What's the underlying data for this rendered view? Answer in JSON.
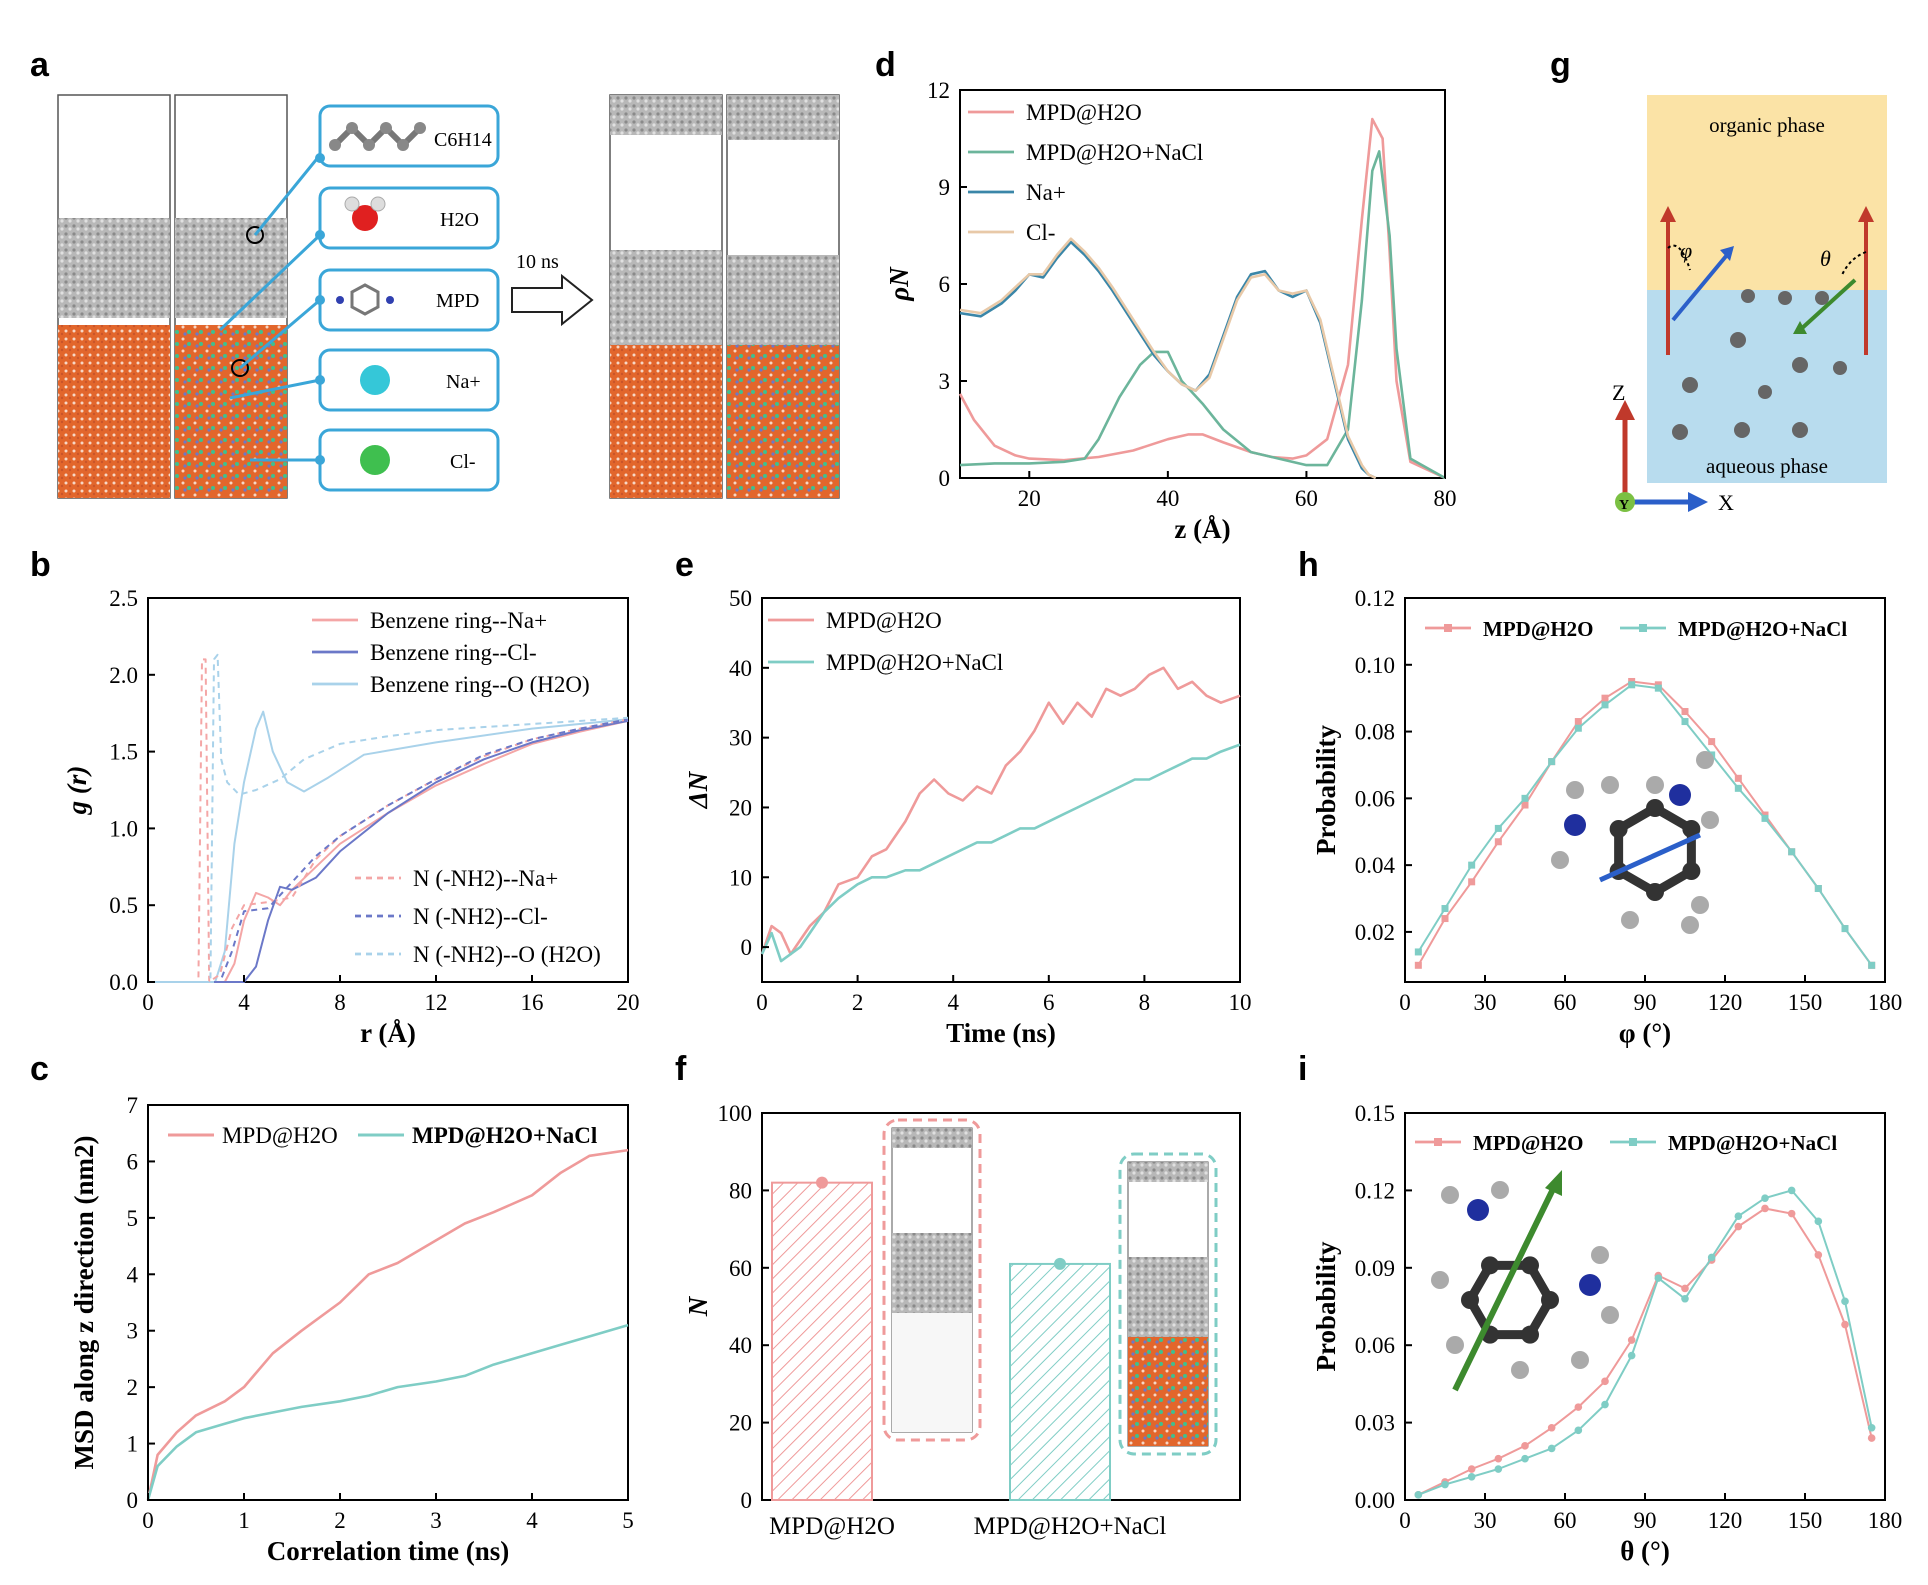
{
  "colors": {
    "pink": "#ef9a9a",
    "pinkRdf": "#f4a6a6",
    "teal": "#7fcdc5",
    "green": "#6cb59b",
    "darkTeal": "#3a86a8",
    "beige": "#e8c9a8",
    "blueNavy": "#6b78c8",
    "lightBlue": "#a9d2ea",
    "water": "#e2662c",
    "mol": "#9a9a9a",
    "calloutBorder": "#3aa6d8",
    "organic": "#fbe3a6",
    "aqueous": "#b8dcee"
  },
  "panels": {
    "a": {
      "label": "a",
      "arrow_text": "10 ns",
      "callouts": [
        "C6H14",
        "H2O",
        "MPD",
        "Na+",
        "Cl-"
      ]
    },
    "g": {
      "label": "g",
      "organic": "organic phase",
      "aqueous": "aqueous phase",
      "axis_z": "Z",
      "axis_x": "X",
      "axis_y": "Y",
      "phi": "φ",
      "theta": "θ"
    }
  },
  "chart_data": [
    {
      "id": "b",
      "type": "line",
      "xlabel": "r (Å)",
      "ylabel": "g (r)",
      "xlim": [
        0,
        20
      ],
      "ylim": [
        0,
        2.5
      ],
      "xticks": [
        "0",
        "4",
        "8",
        "12",
        "16",
        "20"
      ],
      "yticks": [
        "0.0",
        "0.5",
        "1.0",
        "1.5",
        "2.0",
        "2.5"
      ],
      "series": [
        {
          "name": "Benzene ring--Na+",
          "dash": false,
          "colorKey": "pinkRdf",
          "x": [
            0,
            3.2,
            3.6,
            4,
            4.5,
            5,
            5.5,
            6,
            7,
            8,
            10,
            12,
            14,
            16,
            18,
            20
          ],
          "y": [
            0,
            0,
            0.12,
            0.4,
            0.58,
            0.55,
            0.5,
            0.6,
            0.75,
            0.9,
            1.1,
            1.28,
            1.42,
            1.55,
            1.63,
            1.7
          ]
        },
        {
          "name": "Benzene ring--Cl-",
          "dash": false,
          "colorKey": "blueNavy",
          "x": [
            0,
            4,
            4.5,
            5,
            5.5,
            6,
            7,
            8,
            10,
            12,
            14,
            16,
            18,
            20
          ],
          "y": [
            0,
            0,
            0.1,
            0.4,
            0.62,
            0.6,
            0.68,
            0.85,
            1.1,
            1.3,
            1.45,
            1.56,
            1.64,
            1.7
          ]
        },
        {
          "name": "Benzene ring--O (H2O)",
          "dash": false,
          "colorKey": "lightBlue",
          "x": [
            0,
            2.8,
            3.2,
            3.6,
            4,
            4.5,
            4.8,
            5.2,
            5.8,
            6.5,
            7.5,
            9,
            12,
            16,
            20
          ],
          "y": [
            0,
            0,
            0.2,
            0.9,
            1.3,
            1.65,
            1.76,
            1.5,
            1.3,
            1.24,
            1.33,
            1.48,
            1.56,
            1.65,
            1.71
          ]
        },
        {
          "name": "N (-NH2)--Na+",
          "dash": true,
          "colorKey": "pinkRdf",
          "x": [
            0,
            2.1,
            2.25,
            2.4,
            2.55,
            3,
            3.5,
            4,
            5,
            6,
            7,
            8,
            10,
            12,
            14,
            16,
            18,
            20
          ],
          "y": [
            0,
            0,
            2.1,
            2.1,
            0,
            0.05,
            0.35,
            0.5,
            0.52,
            0.55,
            0.8,
            0.95,
            1.15,
            1.32,
            1.47,
            1.58,
            1.65,
            1.71
          ]
        },
        {
          "name": "N (-NH2)--Cl-",
          "dash": true,
          "colorKey": "blueNavy",
          "x": [
            0,
            3,
            3.5,
            4,
            5,
            6,
            7,
            8,
            10,
            12,
            14,
            16,
            18,
            20
          ],
          "y": [
            0,
            0,
            0.2,
            0.46,
            0.48,
            0.65,
            0.82,
            0.95,
            1.15,
            1.32,
            1.48,
            1.58,
            1.65,
            1.71
          ]
        },
        {
          "name": "N (-NH2)--O (H2O)",
          "dash": true,
          "colorKey": "lightBlue",
          "x": [
            0,
            2.6,
            2.75,
            2.9,
            3.05,
            3.3,
            3.8,
            4.5,
            5.5,
            6.5,
            8,
            10,
            12,
            16,
            20
          ],
          "y": [
            0,
            0,
            2.1,
            2.13,
            1.45,
            1.3,
            1.22,
            1.25,
            1.32,
            1.45,
            1.55,
            1.6,
            1.64,
            1.68,
            1.72
          ]
        }
      ]
    },
    {
      "id": "c",
      "type": "line",
      "xlabel": "Correlation time (ns)",
      "ylabel": "MSD along z direction (nm2)",
      "xlim": [
        0,
        5
      ],
      "ylim": [
        0,
        7
      ],
      "xticks": [
        "0",
        "1",
        "2",
        "3",
        "4",
        "5"
      ],
      "yticks": [
        "0",
        "1",
        "2",
        "3",
        "4",
        "5",
        "6",
        "7"
      ],
      "series": [
        {
          "name": "MPD@H2O",
          "colorKey": "pink",
          "x": [
            0,
            0.1,
            0.3,
            0.5,
            0.8,
            1,
            1.3,
            1.6,
            2,
            2.3,
            2.6,
            3,
            3.3,
            3.6,
            4,
            4.3,
            4.6,
            5
          ],
          "y": [
            0,
            0.8,
            1.2,
            1.5,
            1.75,
            2.0,
            2.6,
            3.0,
            3.5,
            4.0,
            4.2,
            4.6,
            4.9,
            5.1,
            5.4,
            5.8,
            6.1,
            6.2
          ]
        },
        {
          "name": "MPD@H2O+NaCl",
          "colorKey": "teal",
          "x": [
            0,
            0.1,
            0.3,
            0.5,
            0.8,
            1,
            1.3,
            1.6,
            2,
            2.3,
            2.6,
            3,
            3.3,
            3.6,
            4,
            4.3,
            4.6,
            5
          ],
          "y": [
            0,
            0.6,
            0.95,
            1.2,
            1.35,
            1.45,
            1.55,
            1.65,
            1.75,
            1.85,
            2.0,
            2.1,
            2.2,
            2.4,
            2.6,
            2.75,
            2.9,
            3.1
          ]
        }
      ]
    },
    {
      "id": "d",
      "type": "line",
      "xlabel": "z (Å)",
      "ylabel": "ρN",
      "xlim": [
        10,
        80
      ],
      "ylim": [
        0,
        12
      ],
      "xticks": [
        "20",
        "40",
        "60",
        "80"
      ],
      "yticks": [
        "0",
        "3",
        "6",
        "9",
        "12"
      ],
      "series": [
        {
          "name": "MPD@H2O",
          "colorKey": "pink",
          "x": [
            10,
            12,
            15,
            18,
            20,
            25,
            30,
            35,
            40,
            43,
            45,
            48,
            52,
            55,
            58,
            60,
            63,
            66,
            68,
            69.5,
            71,
            72,
            73,
            75,
            80
          ],
          "y": [
            2.6,
            1.8,
            1.0,
            0.7,
            0.6,
            0.55,
            0.65,
            0.85,
            1.2,
            1.35,
            1.35,
            1.1,
            0.8,
            0.65,
            0.6,
            0.7,
            1.2,
            3.5,
            8.0,
            11.1,
            10.5,
            7.0,
            3.0,
            0.5,
            0
          ]
        },
        {
          "name": "MPD@H2O+NaCl",
          "colorKey": "green",
          "x": [
            10,
            15,
            20,
            25,
            28,
            30,
            33,
            36,
            38,
            40,
            42,
            45,
            48,
            52,
            56,
            60,
            63,
            66,
            68,
            69.5,
            70.5,
            72,
            73,
            75,
            80
          ],
          "y": [
            0.4,
            0.45,
            0.45,
            0.5,
            0.6,
            1.2,
            2.5,
            3.5,
            3.9,
            3.9,
            3.0,
            2.3,
            1.5,
            0.8,
            0.6,
            0.4,
            0.4,
            1.5,
            5.5,
            9.5,
            10.1,
            7.5,
            4.0,
            0.6,
            0
          ]
        },
        {
          "name": "Na+",
          "colorKey": "darkTeal",
          "x": [
            10,
            13,
            16,
            18,
            20,
            22,
            24,
            26,
            28,
            30,
            32,
            35,
            38,
            40,
            42,
            44,
            46,
            48,
            50,
            52,
            54,
            56,
            58,
            60,
            62,
            64,
            66,
            68,
            69,
            70
          ],
          "y": [
            5.1,
            5.0,
            5.4,
            5.8,
            6.3,
            6.2,
            6.8,
            7.3,
            6.9,
            6.4,
            5.8,
            4.8,
            3.8,
            3.3,
            2.9,
            2.7,
            3.2,
            4.4,
            5.6,
            6.3,
            6.4,
            5.8,
            5.6,
            5.8,
            4.8,
            3.0,
            1.2,
            0.3,
            0.1,
            0
          ]
        },
        {
          "name": "Cl-",
          "colorKey": "beige",
          "x": [
            10,
            13,
            16,
            18,
            20,
            22,
            24,
            26,
            28,
            30,
            32,
            35,
            38,
            40,
            42,
            44,
            46,
            48,
            50,
            52,
            54,
            56,
            58,
            60,
            62,
            64,
            66,
            68,
            69,
            70
          ],
          "y": [
            5.2,
            5.1,
            5.5,
            5.9,
            6.3,
            6.3,
            6.9,
            7.4,
            7.0,
            6.5,
            5.9,
            4.9,
            3.9,
            3.3,
            2.9,
            2.7,
            3.1,
            4.3,
            5.5,
            6.2,
            6.3,
            5.8,
            5.7,
            5.8,
            4.9,
            3.1,
            1.3,
            0.4,
            0.1,
            0
          ]
        }
      ]
    },
    {
      "id": "e",
      "type": "line",
      "xlabel": "Time (ns)",
      "ylabel": "ΔN",
      "xlim": [
        0,
        10
      ],
      "ylim": [
        -5,
        50
      ],
      "xticks": [
        "0",
        "2",
        "4",
        "6",
        "8",
        "10"
      ],
      "yticks": [
        "0",
        "10",
        "20",
        "30",
        "40",
        "50"
      ],
      "series": [
        {
          "name": "MPD@H2O",
          "colorKey": "pink",
          "x": [
            0,
            0.2,
            0.4,
            0.6,
            0.8,
            1,
            1.3,
            1.6,
            2,
            2.3,
            2.6,
            3,
            3.3,
            3.6,
            3.9,
            4.2,
            4.5,
            4.8,
            5.1,
            5.4,
            5.7,
            6,
            6.3,
            6.6,
            6.9,
            7.2,
            7.5,
            7.8,
            8.1,
            8.4,
            8.7,
            9,
            9.3,
            9.6,
            10
          ],
          "y": [
            -1,
            3,
            2,
            -1,
            1,
            3,
            5,
            9,
            10,
            13,
            14,
            18,
            22,
            24,
            22,
            21,
            23,
            22,
            26,
            28,
            31,
            35,
            32,
            35,
            33,
            37,
            36,
            37,
            39,
            40,
            37,
            38,
            36,
            35,
            36
          ]
        },
        {
          "name": "MPD@H2O+NaCl",
          "colorKey": "teal",
          "x": [
            0,
            0.2,
            0.4,
            0.6,
            0.8,
            1,
            1.3,
            1.6,
            2,
            2.3,
            2.6,
            3,
            3.3,
            3.6,
            3.9,
            4.2,
            4.5,
            4.8,
            5.1,
            5.4,
            5.7,
            6,
            6.3,
            6.6,
            6.9,
            7.2,
            7.5,
            7.8,
            8.1,
            8.4,
            8.7,
            9,
            9.3,
            9.6,
            10
          ],
          "y": [
            -1,
            2,
            -2,
            -1,
            0,
            2,
            5,
            7,
            9,
            10,
            10,
            11,
            11,
            12,
            13,
            14,
            15,
            15,
            16,
            17,
            17,
            18,
            19,
            20,
            21,
            22,
            23,
            24,
            24,
            25,
            26,
            27,
            27,
            28,
            29
          ]
        }
      ]
    },
    {
      "id": "f",
      "type": "bar",
      "ylabel": "N",
      "ylim": [
        0,
        100
      ],
      "yticks": [
        "0",
        "20",
        "40",
        "60",
        "80",
        "100"
      ],
      "categories": [
        "MPD@H2O",
        "MPD@H2O+NaCl"
      ],
      "values": [
        82,
        61
      ]
    },
    {
      "id": "h",
      "type": "line",
      "xlabel": "φ (°)",
      "ylabel": "Probability",
      "xlim": [
        0,
        180
      ],
      "ylim": [
        0.005,
        0.12
      ],
      "xticks": [
        "0",
        "30",
        "60",
        "90",
        "120",
        "150",
        "180"
      ],
      "yticks": [
        "0.02",
        "0.04",
        "0.06",
        "0.08",
        "0.10",
        "0.12"
      ],
      "series": [
        {
          "name": "MPD@H2O",
          "colorKey": "pink",
          "x": [
            5,
            15,
            25,
            35,
            45,
            55,
            65,
            75,
            85,
            95,
            105,
            115,
            125,
            135,
            145,
            155,
            165,
            175
          ],
          "y": [
            0.01,
            0.024,
            0.035,
            0.047,
            0.058,
            0.071,
            0.083,
            0.09,
            0.095,
            0.094,
            0.086,
            0.077,
            0.066,
            0.055,
            0.044,
            0.033,
            0.021,
            0.01
          ]
        },
        {
          "name": "MPD@H2O+NaCl",
          "colorKey": "teal",
          "x": [
            5,
            15,
            25,
            35,
            45,
            55,
            65,
            75,
            85,
            95,
            105,
            115,
            125,
            135,
            145,
            155,
            165,
            175
          ],
          "y": [
            0.014,
            0.027,
            0.04,
            0.051,
            0.06,
            0.071,
            0.081,
            0.088,
            0.094,
            0.093,
            0.083,
            0.073,
            0.063,
            0.054,
            0.044,
            0.033,
            0.021,
            0.01
          ]
        }
      ]
    },
    {
      "id": "i",
      "type": "line",
      "xlabel": "θ (°)",
      "ylabel": "Probability",
      "xlim": [
        0,
        180
      ],
      "ylim": [
        0,
        0.15
      ],
      "xticks": [
        "0",
        "30",
        "60",
        "90",
        "120",
        "150",
        "180"
      ],
      "yticks": [
        "0.00",
        "0.03",
        "0.06",
        "0.09",
        "0.12",
        "0.15"
      ],
      "series": [
        {
          "name": "MPD@H2O",
          "colorKey": "pink",
          "x": [
            5,
            15,
            25,
            35,
            45,
            55,
            65,
            75,
            85,
            95,
            105,
            115,
            125,
            135,
            145,
            155,
            165,
            175
          ],
          "y": [
            0.002,
            0.007,
            0.012,
            0.016,
            0.021,
            0.028,
            0.036,
            0.046,
            0.062,
            0.087,
            0.082,
            0.093,
            0.106,
            0.113,
            0.111,
            0.095,
            0.068,
            0.024
          ]
        },
        {
          "name": "MPD@H2O+NaCl",
          "colorKey": "teal",
          "x": [
            5,
            15,
            25,
            35,
            45,
            55,
            65,
            75,
            85,
            95,
            105,
            115,
            125,
            135,
            145,
            155,
            165,
            175
          ],
          "y": [
            0.002,
            0.006,
            0.009,
            0.012,
            0.016,
            0.02,
            0.027,
            0.037,
            0.056,
            0.086,
            0.078,
            0.094,
            0.11,
            0.117,
            0.12,
            0.108,
            0.077,
            0.028
          ]
        }
      ]
    }
  ]
}
